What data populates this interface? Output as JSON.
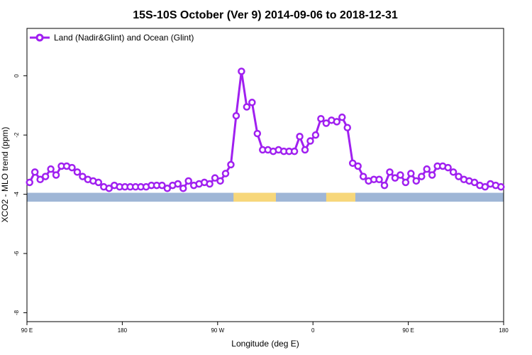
{
  "chart_data": {
    "type": "line",
    "title": "15S-10S October (Ver 9)   2014-09-06 to 2018-12-31",
    "xlabel": "Longitude (deg E)",
    "ylabel": "XCO2 - MLO trend (ppm)",
    "xlim": [
      0,
      360
    ],
    "ylim": [
      -8.3,
      1.6
    ],
    "x_ticks": [
      {
        "value": 0,
        "label": "90 E"
      },
      {
        "value": 72,
        "label": "180"
      },
      {
        "value": 144,
        "label": "90 W"
      },
      {
        "value": 216,
        "label": "0"
      },
      {
        "value": 288,
        "label": "90 E"
      },
      {
        "value": 360,
        "label": "180"
      }
    ],
    "y_ticks": [
      {
        "value": 0,
        "label": "0"
      },
      {
        "value": -2,
        "label": "-2"
      },
      {
        "value": -4,
        "label": "-4"
      },
      {
        "value": -6,
        "label": "-6"
      },
      {
        "value": -8,
        "label": "-8"
      }
    ],
    "grid": false,
    "legend_position": "top-left",
    "series": [
      {
        "name": "Land (Nadir&Glint) and Ocean (Glint)",
        "color": "#a020f0",
        "x": [
          2,
          6,
          10,
          14,
          18,
          22,
          26,
          30,
          34,
          38,
          42,
          46,
          50,
          54,
          58,
          62,
          66,
          70,
          74,
          78,
          82,
          86,
          90,
          94,
          98,
          102,
          106,
          110,
          114,
          118,
          122,
          126,
          130,
          134,
          138,
          142,
          146,
          150,
          154,
          158,
          162,
          166,
          170,
          174,
          178,
          182,
          186,
          190,
          194,
          198,
          202,
          206,
          210,
          214,
          218,
          222,
          226,
          230,
          234,
          238,
          242,
          246,
          250,
          254,
          258,
          262,
          266,
          270,
          274,
          278,
          282,
          286,
          290,
          294,
          298,
          302,
          306,
          310,
          314,
          318,
          322,
          326,
          330,
          334,
          338,
          342,
          346,
          350,
          354,
          358
        ],
        "y": [
          -3.6,
          -3.25,
          -3.5,
          -3.4,
          -3.15,
          -3.35,
          -3.05,
          -3.05,
          -3.1,
          -3.25,
          -3.4,
          -3.5,
          -3.55,
          -3.6,
          -3.75,
          -3.8,
          -3.7,
          -3.75,
          -3.75,
          -3.75,
          -3.75,
          -3.75,
          -3.75,
          -3.7,
          -3.7,
          -3.7,
          -3.8,
          -3.7,
          -3.65,
          -3.8,
          -3.55,
          -3.7,
          -3.65,
          -3.6,
          -3.65,
          -3.45,
          -3.55,
          -3.3,
          -3.0,
          -1.35,
          0.15,
          -1.05,
          -0.9,
          -1.95,
          -2.5,
          -2.5,
          -2.55,
          -2.5,
          -2.55,
          -2.55,
          -2.55,
          -2.05,
          -2.5,
          -2.2,
          -2.0,
          -1.45,
          -1.6,
          -1.5,
          -1.55,
          -1.4,
          -1.75,
          -2.95,
          -3.05,
          -3.4,
          -3.55,
          -3.5,
          -3.5,
          -3.7,
          -3.25,
          -3.45,
          -3.35,
          -3.6,
          -3.3,
          -3.55,
          -3.4,
          -3.15,
          -3.35,
          -3.05,
          -3.05,
          -3.1,
          -3.25,
          -3.4,
          -3.5,
          -3.55,
          -3.6,
          -3.7,
          -3.75,
          -3.65,
          -3.7,
          -3.75
        ]
      }
    ],
    "surface_strip": {
      "y_range": [
        -4.25,
        -3.95
      ],
      "ocean_color": "#9fb6d6",
      "land_color": "#f7d77a",
      "land_segments": [
        [
          156,
          188
        ],
        [
          226,
          248
        ]
      ]
    }
  }
}
